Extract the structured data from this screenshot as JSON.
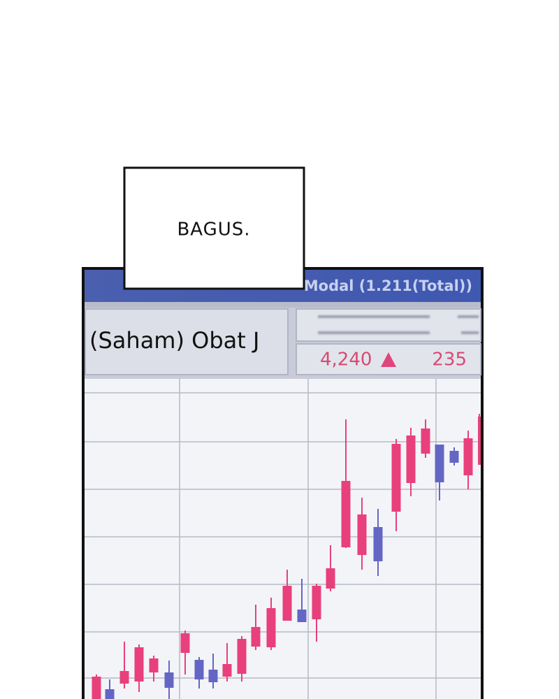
{
  "speech": {
    "text": "BAGUS."
  },
  "screen": {
    "header": "Modal (1.211(Total))",
    "stock_name": "(Saham) Obat J",
    "price": "4,240",
    "change": "235"
  }
}
